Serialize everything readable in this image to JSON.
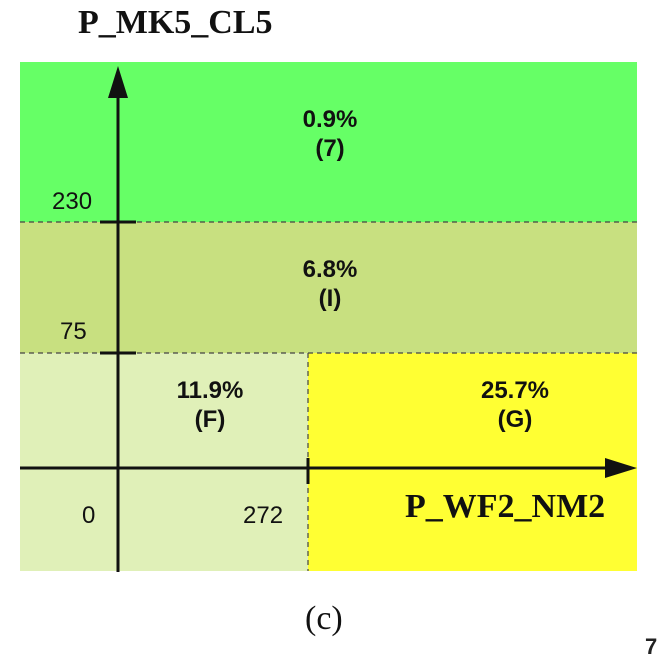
{
  "y_axis": {
    "title": "P_MK5_CL5",
    "ticks": [
      "230",
      "75"
    ]
  },
  "x_axis": {
    "title": "P_WF2_NM2",
    "ticks": [
      "0",
      "272"
    ]
  },
  "regions": [
    {
      "pct": "0.9%",
      "tag": "(7)",
      "color": "#66ff66"
    },
    {
      "pct": "6.8%",
      "tag": "(I)",
      "color": "#c8e080"
    },
    {
      "pct": "11.9%",
      "tag": "(F)",
      "color": "#e0f0b8"
    },
    {
      "pct": "25.7%",
      "tag": "(G)",
      "color": "#ffff33"
    }
  ],
  "caption": "(c)",
  "corner_mark": "7"
}
